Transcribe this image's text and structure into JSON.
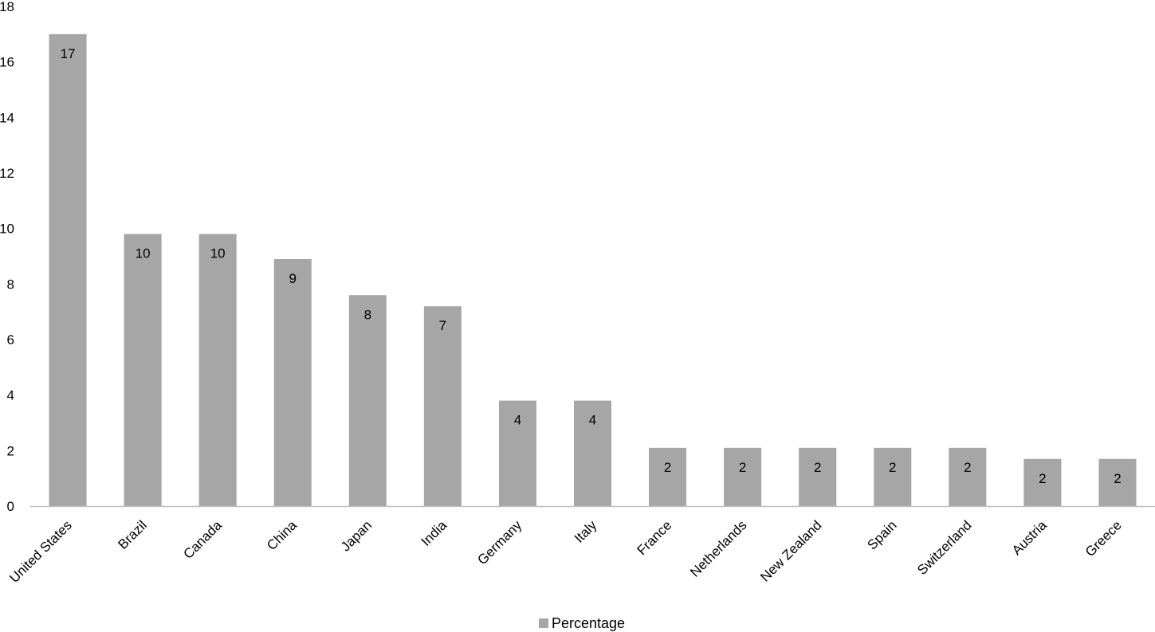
{
  "chart_data": {
    "type": "bar",
    "categories": [
      "United States",
      "Brazil",
      "Canada",
      "China",
      "Japan",
      "India",
      "Germany",
      "Italy",
      "France",
      "Netherlands",
      "New Zealand",
      "Spain",
      "Switzerland",
      "Austria",
      "Greece"
    ],
    "values": [
      17,
      9.8,
      9.8,
      8.9,
      7.6,
      7.2,
      3.8,
      3.8,
      2.1,
      2.1,
      2.1,
      2.1,
      2.1,
      1.7,
      1.7
    ],
    "data_labels": [
      "17",
      "10",
      "10",
      "9",
      "8",
      "7",
      "4",
      "4",
      "2",
      "2",
      "2",
      "2",
      "2",
      "2",
      "2"
    ],
    "series": [
      {
        "name": "Percentage",
        "color": "#a6a6a6"
      }
    ],
    "title": "",
    "xlabel": "",
    "ylabel": "",
    "ylim": [
      0,
      18
    ],
    "yticks": [
      "0",
      "2",
      "4",
      "6",
      "8",
      "10",
      "12",
      "14",
      "16",
      "18"
    ],
    "grid": false,
    "legend_position": "bottom"
  }
}
